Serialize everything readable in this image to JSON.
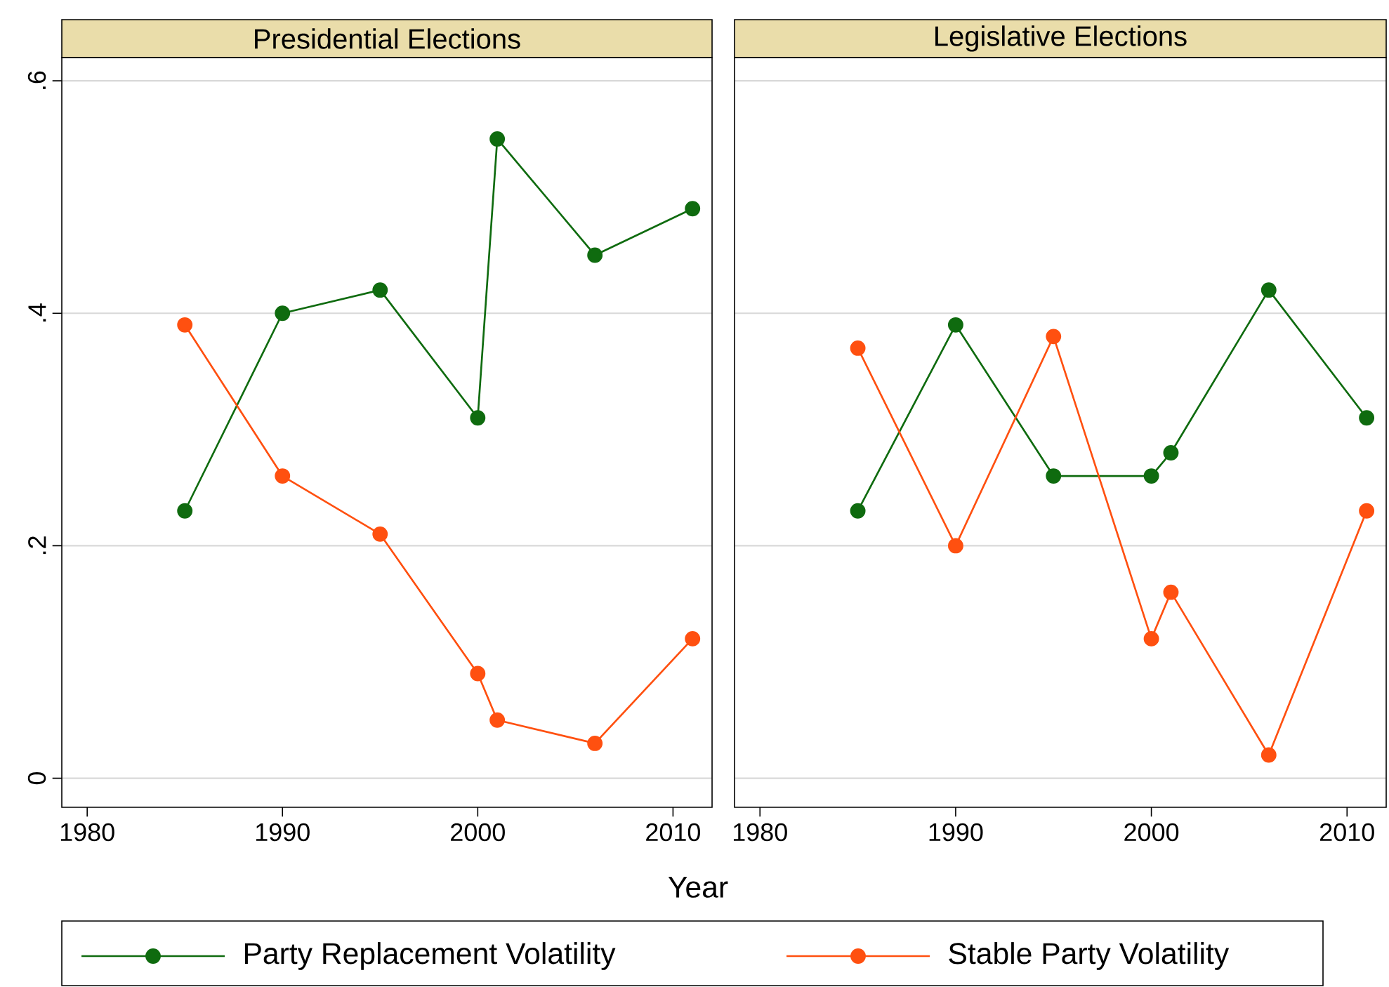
{
  "chart_data": [
    {
      "type": "line",
      "title": "Presidential Elections",
      "xlabel": "Year",
      "x": [
        1985,
        1990,
        1995,
        2000,
        2001,
        2006,
        2011
      ],
      "series": [
        {
          "name": "Party Replacement Volatility",
          "color": "#0f6b0f",
          "values": [
            0.23,
            0.4,
            0.42,
            0.31,
            0.55,
            0.45,
            0.49
          ]
        },
        {
          "name": "Stable Party Volatility",
          "color": "#ff5010",
          "values": [
            0.39,
            0.26,
            0.21,
            0.09,
            0.05,
            0.03,
            0.12
          ]
        }
      ],
      "xlim": [
        1978.7,
        2012
      ],
      "ylim": [
        -0.025,
        0.62
      ],
      "xticks": [
        1980,
        1990,
        2000,
        2010
      ],
      "yticks": [
        0,
        {
          "value": 0.2,
          "label": ".2"
        },
        {
          "value": 0.4,
          "label": ".4"
        },
        {
          "value": 0.6,
          "label": ".6"
        }
      ],
      "grid": "y",
      "legend": "bottom",
      "marker": "circle",
      "line_style": "solid"
    },
    {
      "type": "line",
      "title": "Legislative Elections",
      "x": [
        1985,
        1990,
        1995,
        2000,
        2001,
        2006,
        2011
      ],
      "series": [
        {
          "color": "#0f6b0f",
          "values": [
            0.23,
            0.39,
            0.26,
            0.26,
            0.28,
            0.42,
            0.31
          ]
        },
        {
          "color": "#ff5010",
          "values": [
            0.37,
            0.2,
            0.38,
            0.12,
            0.16,
            0.02,
            0.23
          ]
        }
      ],
      "xlim": [
        1978.7,
        2012
      ],
      "ylim": [
        -0.025,
        0.62
      ],
      "xticks": [
        1980,
        1990,
        2000,
        2010
      ],
      "yticks": [
        0,
        0.2,
        0.4,
        0.6
      ],
      "grid": "y",
      "tick_labels": "x",
      "marker": "circle",
      "line_style": "solid"
    }
  ]
}
